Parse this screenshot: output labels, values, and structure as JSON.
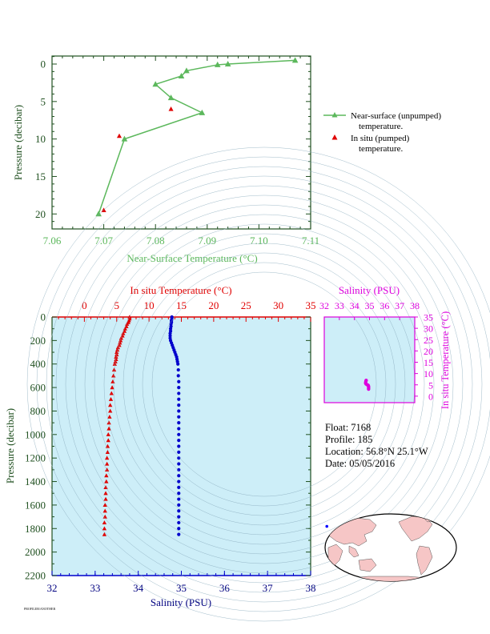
{
  "colors": {
    "green": "#5cb85c",
    "red": "#e00000",
    "blue": "#0000cc",
    "magenta": "#dd00dd",
    "navy": "#000080",
    "panel_bg": "#cdeef8",
    "axis_dark": "#205020"
  },
  "chart_data": [
    {
      "type": "line",
      "name": "near-surface",
      "xlabel": "Near-Surface Temperature (°C)",
      "ylabel": "Pressure (decibar)",
      "xlim": [
        7.06,
        7.11
      ],
      "ylim": [
        0,
        22
      ],
      "y_inverted": true,
      "xticks": [
        "7.06",
        "7.07",
        "7.08",
        "7.09",
        "7.10",
        "7.11"
      ],
      "yticks": [
        "0",
        "5",
        "10",
        "15",
        "20"
      ],
      "legend_position": "right",
      "series": [
        {
          "name": "Near-surface (unpumped)",
          "name_line2": "temperature.",
          "marker": "triangle",
          "style": "line",
          "x": [
            7.107,
            7.094,
            7.092,
            7.086,
            7.085,
            7.08,
            7.083,
            7.089,
            7.074,
            7.069
          ],
          "y": [
            -0.5,
            0.0,
            0.1,
            0.9,
            1.6,
            2.7,
            4.5,
            6.5,
            10.0,
            20.0
          ]
        },
        {
          "name": "In situ (pumped)",
          "name_line2": "temperature.",
          "marker": "triangle",
          "style": "points",
          "x": [
            7.083,
            7.073,
            7.07
          ],
          "y": [
            6.0,
            9.6,
            19.5
          ]
        }
      ]
    },
    {
      "type": "scatter",
      "name": "profile",
      "title_top": "In situ Temperature (°C)",
      "xlabel": "Salinity (PSU)",
      "ylabel": "Pressure (decibar)",
      "temp_lim": [
        -5,
        35
      ],
      "temp_ticks": [
        "0",
        "5",
        "10",
        "15",
        "20",
        "25",
        "30",
        "35"
      ],
      "sal_lim": [
        32,
        38
      ],
      "sal_ticks": [
        "32",
        "33",
        "34",
        "35",
        "36",
        "37",
        "38"
      ],
      "ylim": [
        0,
        2200
      ],
      "y_inverted": true,
      "yticks": [
        "0",
        "200",
        "400",
        "600",
        "800",
        "1000",
        "1200",
        "1400",
        "1600",
        "1800",
        "2000",
        "2200"
      ],
      "temperature": {
        "p": [
          0,
          15,
          30,
          45,
          60,
          80,
          100,
          120,
          140,
          160,
          180,
          200,
          220,
          240,
          260,
          280,
          300,
          320,
          340,
          360,
          380,
          400,
          450,
          500,
          550,
          600,
          650,
          700,
          750,
          800,
          850,
          900,
          950,
          1000,
          1050,
          1100,
          1150,
          1200,
          1250,
          1300,
          1350,
          1400,
          1450,
          1500,
          1550,
          1600,
          1650,
          1700,
          1750,
          1800,
          1850
        ],
        "t": [
          7.0,
          7.0,
          6.9,
          6.8,
          6.6,
          6.5,
          6.3,
          6.2,
          6.0,
          5.9,
          5.7,
          5.6,
          5.5,
          5.4,
          5.2,
          5.1,
          5.0,
          5.0,
          4.9,
          4.9,
          4.8,
          4.7,
          4.6,
          4.5,
          4.4,
          4.3,
          4.2,
          4.1,
          4.0,
          4.0,
          3.9,
          3.8,
          3.8,
          3.7,
          3.7,
          3.6,
          3.6,
          3.5,
          3.5,
          3.5,
          3.4,
          3.4,
          3.3,
          3.3,
          3.3,
          3.2,
          3.2,
          3.2,
          3.1,
          3.1,
          3.1
        ]
      },
      "salinity": {
        "p": [
          0,
          15,
          30,
          45,
          60,
          80,
          100,
          120,
          140,
          160,
          180,
          200,
          220,
          240,
          260,
          280,
          300,
          320,
          340,
          360,
          380,
          400,
          450,
          500,
          550,
          600,
          650,
          700,
          750,
          800,
          850,
          900,
          950,
          1000,
          1050,
          1100,
          1150,
          1200,
          1250,
          1300,
          1350,
          1400,
          1450,
          1500,
          1550,
          1600,
          1650,
          1700,
          1750,
          1800,
          1850
        ],
        "s": [
          34.78,
          34.78,
          34.77,
          34.77,
          34.76,
          34.76,
          34.75,
          34.75,
          34.74,
          34.74,
          34.74,
          34.75,
          34.77,
          34.79,
          34.81,
          34.83,
          34.85,
          34.87,
          34.89,
          34.9,
          34.91,
          34.92,
          34.93,
          34.93,
          34.94,
          34.94,
          34.94,
          34.94,
          34.94,
          34.94,
          34.94,
          34.94,
          34.94,
          34.94,
          34.94,
          34.94,
          34.94,
          34.94,
          34.94,
          34.94,
          34.94,
          34.94,
          34.94,
          34.94,
          34.94,
          34.94,
          34.94,
          34.94,
          34.94,
          34.94,
          34.94
        ]
      }
    },
    {
      "type": "scatter",
      "name": "ts-diagram",
      "title_top": "Salinity (PSU)",
      "ylabel": "In situ Temperature (°C)",
      "sal_lim": [
        32,
        38
      ],
      "sal_ticks": [
        "32",
        "33",
        "34",
        "35",
        "36",
        "37",
        "38"
      ],
      "temp_lim": [
        -5,
        35
      ],
      "temp_ticks": [
        "0",
        "5",
        "10",
        "15",
        "20",
        "25",
        "30",
        "35"
      ],
      "points": {
        "s": [
          34.78,
          34.77,
          34.75,
          34.74,
          34.77,
          34.83,
          34.89,
          34.92,
          34.94,
          34.94,
          34.94,
          34.94
        ],
        "t": [
          7.0,
          6.8,
          6.3,
          5.7,
          5.4,
          5.1,
          4.9,
          4.7,
          4.3,
          3.9,
          3.5,
          3.1
        ]
      }
    }
  ],
  "info": {
    "float": "Float:  7168",
    "profile": "Profile:  185",
    "location": "Location:  56.8°N  25.1°W",
    "date": "Date:  05/05/2016"
  },
  "map": {
    "marker_lat": 56.8,
    "marker_lon": -25.1
  },
  "footer": "PROFILER/ANOTHER"
}
